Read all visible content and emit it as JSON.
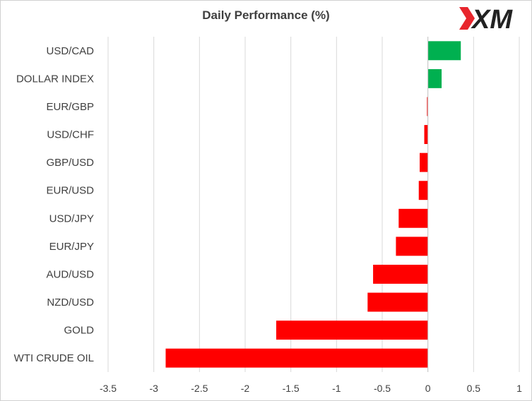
{
  "logo": {
    "text": "XM",
    "mark_color": "#e8262d"
  },
  "chart_data": {
    "type": "bar",
    "orientation": "horizontal",
    "title": "Daily Performance (%)",
    "categories": [
      "USD/CAD",
      "DOLLAR INDEX",
      "EUR/GBP",
      "USD/CHF",
      "GBP/USD",
      "EUR/USD",
      "USD/JPY",
      "EUR/JPY",
      "AUD/USD",
      "NZD/USD",
      "GOLD",
      "WTI CRUDE OIL"
    ],
    "values": [
      0.36,
      0.15,
      -0.01,
      -0.04,
      -0.09,
      -0.1,
      -0.32,
      -0.35,
      -0.6,
      -0.66,
      -1.66,
      -2.87
    ],
    "xlim": [
      -3.5,
      1
    ],
    "xticks": [
      "-3.5",
      "-3",
      "-2.5",
      "-2",
      "-1.5",
      "-1",
      "-0.5",
      "0",
      "0.5",
      "1"
    ],
    "grid": true,
    "colors": {
      "positive": "#00b050",
      "negative": "#ff0000"
    }
  }
}
